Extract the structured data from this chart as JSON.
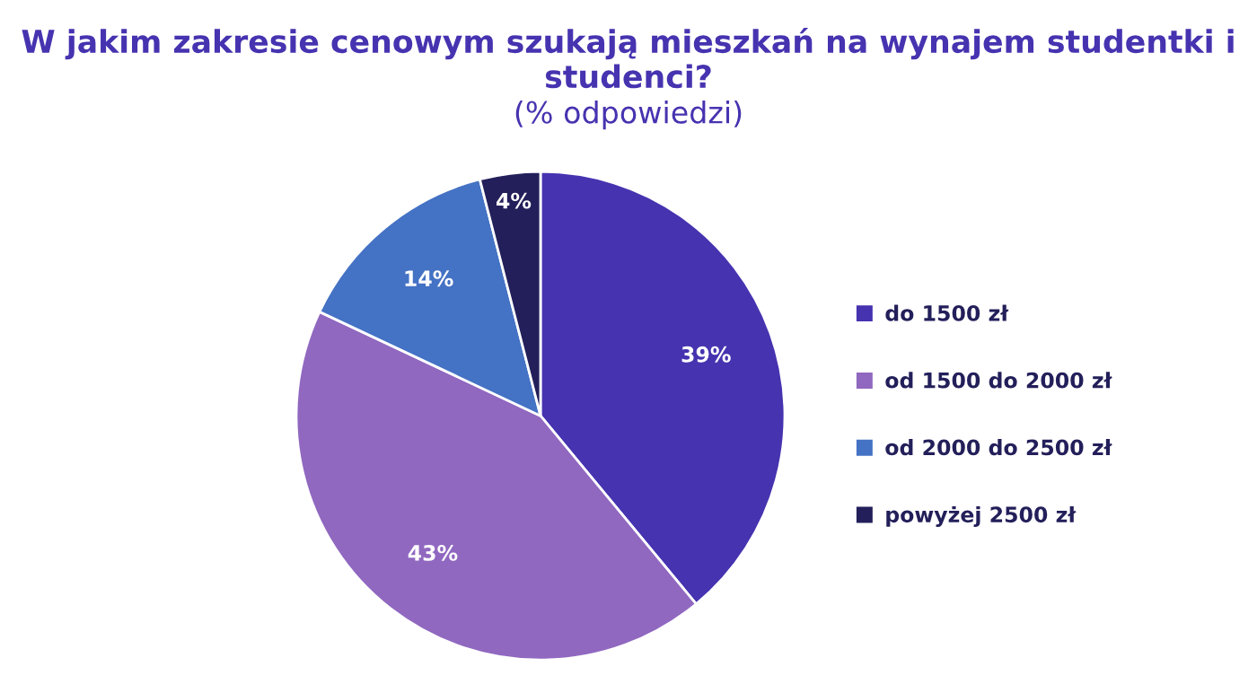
{
  "chart_data": {
    "type": "pie",
    "title": "W jakim zakresie cenowym szukają mieszkań na wynajem studentki i studenci?",
    "subtitle": "(% odpowiedzi)",
    "categories": [
      "do 1500 zł",
      "od 1500 do 2000 zł",
      "od 2000 do 2500 zł",
      "powyżej 2500 zł"
    ],
    "values": [
      39,
      43,
      14,
      4
    ],
    "colors": [
      "#4633b0",
      "#9068c0",
      "#4472c4",
      "#231f5a"
    ],
    "value_labels": [
      "39%",
      "43%",
      "14%",
      "4%"
    ],
    "legend": "right"
  }
}
